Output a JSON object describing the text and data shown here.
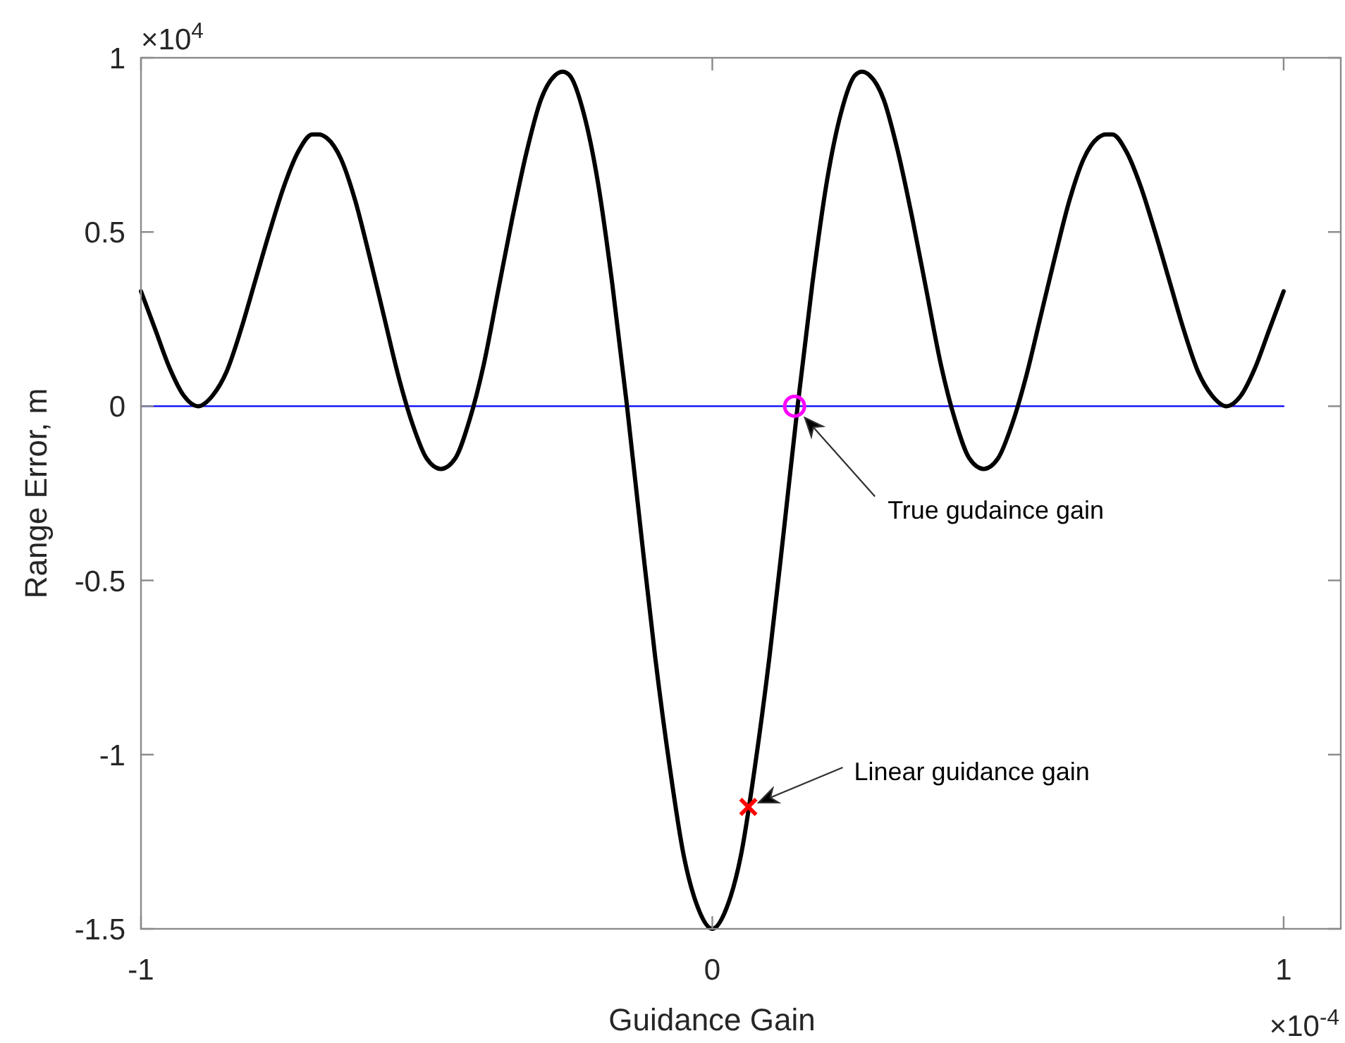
{
  "chart_data": {
    "type": "line",
    "xlabel": "Guidance Gain",
    "ylabel": "Range Error, m",
    "xlim": [
      -1,
      1.1
    ],
    "xticks": [
      -1,
      0,
      1
    ],
    "ylim": [
      -1.5,
      1
    ],
    "yticks": [
      -1.5,
      -1,
      -0.5,
      0,
      0.5,
      1
    ],
    "series": [
      {
        "color": "#0000ff",
        "x": [
          -1,
          1
        ],
        "values": [
          0,
          0
        ]
      },
      {
        "color": "#000000",
        "x": [
          -1,
          -0.975,
          -0.95,
          -0.925,
          -0.9,
          -0.875,
          -0.85,
          -0.825,
          -0.8,
          -0.775,
          -0.75,
          -0.725,
          -0.7,
          -0.689,
          -0.675,
          -0.65,
          -0.625,
          -0.6,
          -0.575,
          -0.55,
          -0.525,
          -0.5,
          -0.475,
          -0.45,
          -0.425,
          -0.4,
          -0.375,
          -0.35,
          -0.325,
          -0.3,
          -0.275,
          -0.262,
          -0.25,
          -0.225,
          -0.2,
          -0.175,
          -0.15,
          -0.125,
          -0.1,
          -0.075,
          -0.05,
          -0.025,
          0,
          0.025,
          0.05,
          0.075,
          0.1,
          0.125,
          0.15,
          0.175,
          0.2,
          0.225,
          0.25,
          0.262,
          0.275,
          0.3,
          0.325,
          0.35,
          0.375,
          0.4,
          0.425,
          0.45,
          0.475,
          0.5,
          0.525,
          0.55,
          0.575,
          0.6,
          0.625,
          0.65,
          0.675,
          0.689,
          0.7,
          0.725,
          0.75,
          0.775,
          0.8,
          0.825,
          0.85,
          0.875,
          0.9,
          0.925,
          0.95,
          0.975,
          1
        ],
        "values": [
          0.33,
          0.22,
          0.11,
          0.03,
          0,
          0.03,
          0.1,
          0.22,
          0.36,
          0.5,
          0.63,
          0.73,
          0.78,
          0.78,
          0.77,
          0.71,
          0.59,
          0.43,
          0.26,
          0.09,
          -0.05,
          -0.15,
          -0.18,
          -0.15,
          -0.04,
          0.12,
          0.33,
          0.54,
          0.73,
          0.88,
          0.95,
          0.96,
          0.95,
          0.84,
          0.64,
          0.35,
          0.01,
          -0.36,
          -0.72,
          -1.03,
          -1.29,
          -1.44,
          -1.5,
          -1.44,
          -1.29,
          -1.03,
          -0.72,
          -0.36,
          0.01,
          0.35,
          0.64,
          0.84,
          0.95,
          0.96,
          0.95,
          0.88,
          0.73,
          0.54,
          0.33,
          0.12,
          -0.04,
          -0.15,
          -0.18,
          -0.15,
          -0.05,
          0.09,
          0.26,
          0.43,
          0.59,
          0.71,
          0.77,
          0.78,
          0.78,
          0.73,
          0.63,
          0.5,
          0.36,
          0.22,
          0.1,
          0.03,
          0,
          0.03,
          0.11,
          0.22,
          0.33
        ]
      },
      {
        "type": "scatter",
        "color": "#ff00ff",
        "marker": "circle",
        "x": [
          0.144
        ],
        "values": [
          0
        ]
      },
      {
        "type": "scatter",
        "color": "#ff0000",
        "marker": "cross",
        "x": [
          0.063
        ],
        "values": [
          -1.15
        ]
      }
    ],
    "annotations": [
      "True gudaince gain",
      "Linear guidance gain",
      "×10$^{4}$",
      "×10$^{-4}$"
    ]
  }
}
